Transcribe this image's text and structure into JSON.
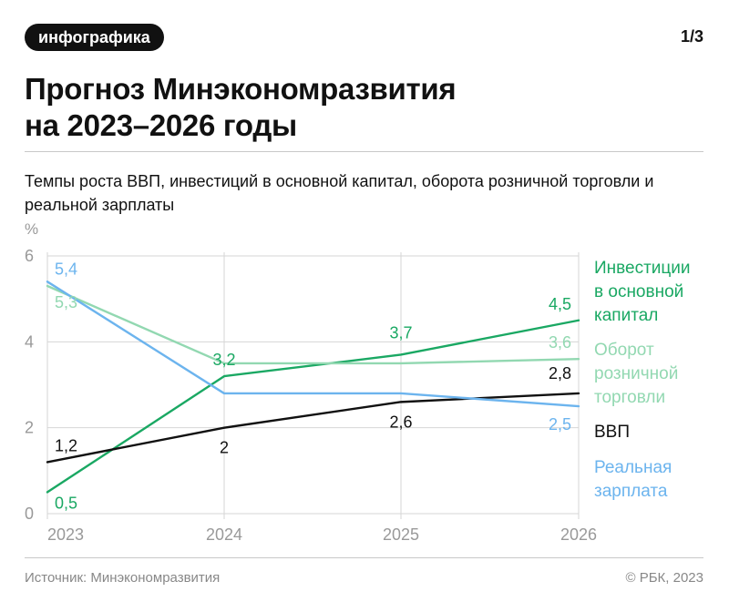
{
  "header": {
    "tag": "инфографика",
    "page": "1/3",
    "title_line1": "Прогноз Минэкономразвития",
    "title_line2": "на 2023–2026 годы",
    "subtitle": "Темпы роста ВВП, инвестиций в основной капитал, оборота розничной торговли и реальной зарплаты"
  },
  "footer": {
    "source": "Источник: Минэкономразвития",
    "copyright": "© РБК, 2023"
  },
  "chart_data": {
    "type": "line",
    "y_unit": "%",
    "x": [
      "2023",
      "2024",
      "2025",
      "2026"
    ],
    "ylim": [
      0,
      6
    ],
    "yticks": [
      "0",
      "2",
      "4",
      "6"
    ],
    "grid": true,
    "legend_placement": "right",
    "series": [
      {
        "key": "inv",
        "name": [
          "Инвестиции",
          "в основной",
          "капитал"
        ],
        "color": "#1aa863",
        "values": [
          0.5,
          3.2,
          3.7,
          4.5
        ],
        "labels": [
          "0,5",
          "3,2",
          "3,7",
          "4,5"
        ]
      },
      {
        "key": "retail",
        "name": [
          "Оборот",
          "розничной",
          "торговли"
        ],
        "color": "#92d8b1",
        "values": [
          5.3,
          3.5,
          3.5,
          3.6
        ],
        "labels": [
          "5,3",
          "",
          "",
          "3,6"
        ]
      },
      {
        "key": "gdp",
        "name": [
          "ВВП"
        ],
        "color": "#111111",
        "values": [
          1.2,
          2.0,
          2.6,
          2.8
        ],
        "labels": [
          "1,2",
          "2",
          "2,6",
          "2,8"
        ]
      },
      {
        "key": "wage",
        "name": [
          "Реальная",
          "зарплата"
        ],
        "color": "#6cb4ee",
        "values": [
          5.4,
          2.8,
          2.8,
          2.5
        ],
        "labels": [
          "5,4",
          "",
          "",
          "2,5"
        ]
      }
    ]
  }
}
